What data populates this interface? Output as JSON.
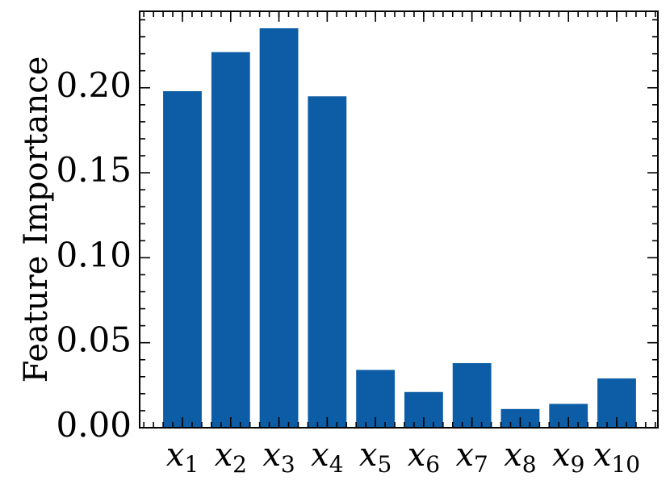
{
  "chart_data": {
    "type": "bar",
    "categories": [
      {
        "base": "x",
        "sub": "1"
      },
      {
        "base": "x",
        "sub": "2"
      },
      {
        "base": "x",
        "sub": "3"
      },
      {
        "base": "x",
        "sub": "4"
      },
      {
        "base": "x",
        "sub": "5"
      },
      {
        "base": "x",
        "sub": "6"
      },
      {
        "base": "x",
        "sub": "7"
      },
      {
        "base": "x",
        "sub": "8"
      },
      {
        "base": "x",
        "sub": "9"
      },
      {
        "base": "x",
        "sub": "10"
      }
    ],
    "values": [
      0.198,
      0.221,
      0.235,
      0.195,
      0.034,
      0.021,
      0.038,
      0.011,
      0.014,
      0.029
    ],
    "title": "",
    "xlabel": "",
    "ylabel": "Feature Importance",
    "ylim": [
      0,
      0.245
    ],
    "yticks": [
      "0.00",
      "0.05",
      "0.10",
      "0.15",
      "0.20"
    ],
    "bar_color": "#0c5da5",
    "grid": false
  }
}
